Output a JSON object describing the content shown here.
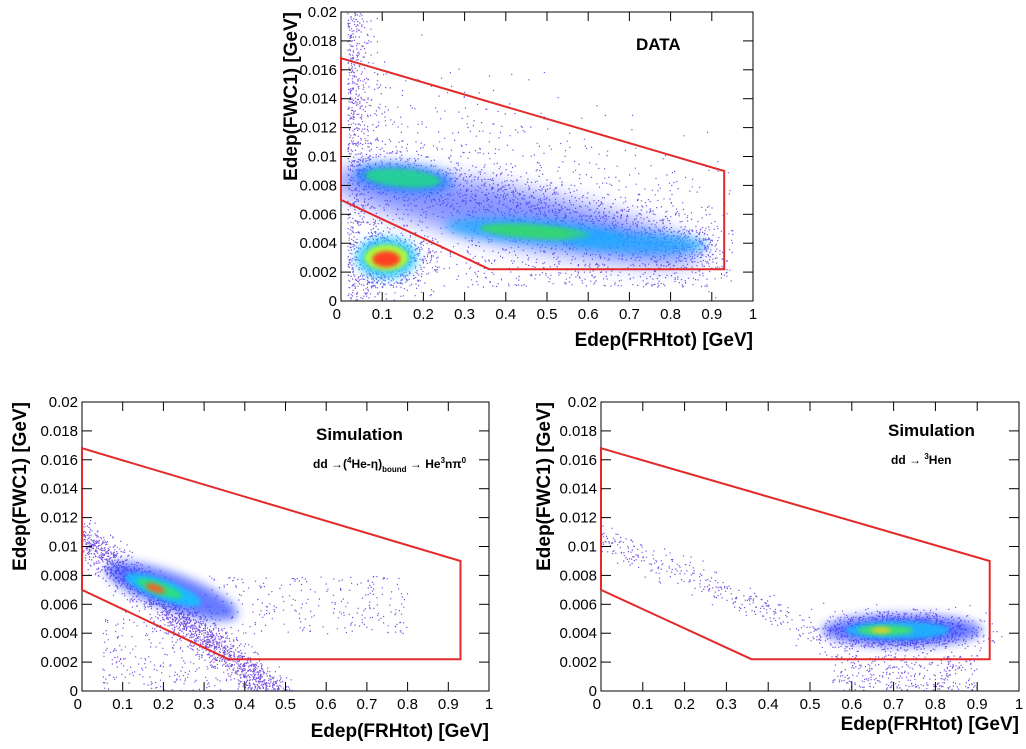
{
  "chart_data": [
    {
      "type": "heatmap",
      "title": "",
      "annotation": "DATA",
      "reaction": {
        "prefix": "",
        "main": "",
        "sup": "",
        "sub": "",
        "tail": "",
        "tail_sup": ""
      },
      "xlabel": "Edep(FRHtot) [GeV]",
      "ylabel": "Edep(FWC1) [GeV]",
      "xlim": [
        0,
        1
      ],
      "ylim": [
        0,
        0.02
      ],
      "x_ticks": [
        "0",
        "0.1",
        "0.2",
        "0.3",
        "0.4",
        "0.5",
        "0.6",
        "0.7",
        "0.8",
        "0.9",
        "1"
      ],
      "y_ticks": [
        "0",
        "0.002",
        "0.004",
        "0.006",
        "0.008",
        "0.01",
        "0.012",
        "0.014",
        "0.016",
        "0.018",
        "0.02"
      ],
      "grid": false,
      "colormap": "rainbow (purple-blue-cyan-green-yellow-red)",
      "density_peaks": [
        {
          "x": 0.11,
          "y": 0.0028,
          "intensity": "max"
        },
        {
          "x": 0.15,
          "y": 0.0085,
          "intensity": "medium"
        },
        {
          "x": 0.45,
          "y": 0.0048,
          "intensity": "medium"
        }
      ],
      "cut_polygon": {
        "color": "#e32a2a",
        "points": [
          [
            0,
            0.0168
          ],
          [
            0.93,
            0.009
          ],
          [
            0.93,
            0.0022
          ],
          [
            0.36,
            0.0022
          ],
          [
            0,
            0.007
          ]
        ]
      }
    },
    {
      "type": "heatmap",
      "title": "",
      "annotation": "Simulation",
      "reaction": {
        "prefix": "dd →(",
        "main": "He-η)",
        "sup": "4",
        "sub": "bound",
        "tail": "→ He",
        "tail_sup": "3",
        "tail_end": "nπ",
        "end_sup": "0"
      },
      "xlabel": "Edep(FRHtot) [GeV]",
      "ylabel": "Edep(FWC1) [GeV]",
      "xlim": [
        0,
        1
      ],
      "ylim": [
        0,
        0.02
      ],
      "x_ticks": [
        "0",
        "0.1",
        "0.2",
        "0.3",
        "0.4",
        "0.5",
        "0.6",
        "0.7",
        "0.8",
        "0.9",
        "1"
      ],
      "y_ticks": [
        "0",
        "0.002",
        "0.004",
        "0.006",
        "0.008",
        "0.01",
        "0.012",
        "0.014",
        "0.016",
        "0.018",
        "0.02"
      ],
      "grid": false,
      "colormap": "rainbow (purple-blue-cyan-green-yellow-red)",
      "density_peaks": [
        {
          "x": 0.2,
          "y": 0.0069,
          "intensity": "max"
        }
      ],
      "cut_polygon": {
        "color": "#e32a2a",
        "points": [
          [
            0,
            0.0168
          ],
          [
            0.93,
            0.009
          ],
          [
            0.93,
            0.0022
          ],
          [
            0.36,
            0.0022
          ],
          [
            0,
            0.007
          ]
        ]
      }
    },
    {
      "type": "heatmap",
      "title": "",
      "annotation": "Simulation",
      "reaction": {
        "prefix": "dd → ",
        "main": "Hen",
        "sup": "3",
        "sub": "",
        "tail": "",
        "tail_sup": "",
        "tail_end": "",
        "end_sup": ""
      },
      "xlabel": "Edep(FRHtot) [GeV]",
      "ylabel": "Edep(FWC1) [GeV]",
      "xlim": [
        0,
        1
      ],
      "ylim": [
        0,
        0.02
      ],
      "x_ticks": [
        "0",
        "0.1",
        "0.2",
        "0.3",
        "0.4",
        "0.5",
        "0.6",
        "0.7",
        "0.8",
        "0.9",
        "1"
      ],
      "y_ticks": [
        "0",
        "0.002",
        "0.004",
        "0.006",
        "0.008",
        "0.01",
        "0.012",
        "0.014",
        "0.016",
        "0.018",
        "0.02"
      ],
      "grid": false,
      "colormap": "rainbow (purple-blue-cyan-green-yellow-red)",
      "density_peaks": [
        {
          "x": 0.7,
          "y": 0.0042,
          "intensity": "max"
        }
      ],
      "cut_polygon": {
        "color": "#e32a2a",
        "points": [
          [
            0,
            0.0168
          ],
          [
            0.93,
            0.009
          ],
          [
            0.93,
            0.0022
          ],
          [
            0.36,
            0.0022
          ],
          [
            0,
            0.007
          ]
        ]
      }
    }
  ]
}
